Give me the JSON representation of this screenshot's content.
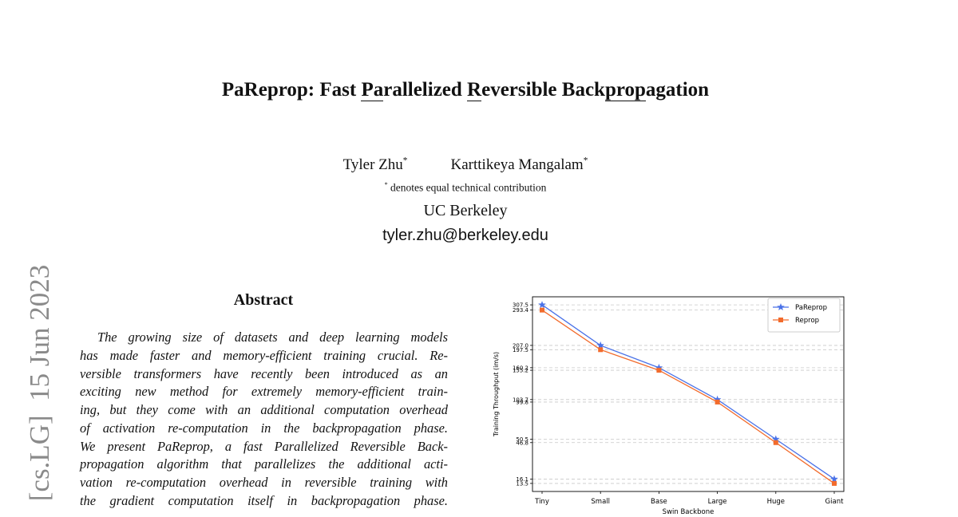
{
  "sidebar": "[cs.LG]  15 Jun 2023",
  "title_parts": [
    {
      "text": "PaReprop: Fast ",
      "underline": false
    },
    {
      "text": "Pa",
      "underline": true
    },
    {
      "text": "rallelized ",
      "underline": false
    },
    {
      "text": "R",
      "underline": true
    },
    {
      "text": "eversible Back",
      "underline": false
    },
    {
      "text": "prop",
      "underline": true
    },
    {
      "text": "agation",
      "underline": false
    }
  ],
  "authors": [
    {
      "name": "Tyler Zhu",
      "mark": "*"
    },
    {
      "name": "Karttikeya Mangalam",
      "mark": "*"
    }
  ],
  "note": {
    "mark": "*",
    "text": " denotes equal technical contribution"
  },
  "affiliation": "UC Berkeley",
  "email": "tyler.zhu@berkeley.edu",
  "abstract": {
    "heading": "Abstract",
    "lines": [
      "The growing size of datasets and deep learning models",
      "has made faster and memory-efficient training crucial. Re-",
      "versible transformers have recently been introduced as an",
      "exciting new method for extremely memory-efficient train-",
      "ing, but they come with an additional computation overhead",
      "of activation re-computation in the backpropagation phase.",
      "We present PaReprop, a fast Parallelized Reversible Back-",
      "propagation algorithm that parallelizes the additional acti-",
      "vation re-computation overhead in reversible training with",
      "the gradient computation itself in backpropagation phase."
    ]
  },
  "chart_data": {
    "type": "line",
    "xlabel": "Swin Backbone",
    "ylabel": "Training Throughput (im/s)",
    "categories": [
      "Tiny",
      "Small",
      "Base",
      "Large",
      "Huge",
      "Giant"
    ],
    "series": [
      {
        "name": "PaReprop",
        "color": "#4a72e8",
        "marker": "star",
        "values": [
          307.5,
          207.0,
          160.2,
          103.7,
          50.5,
          16.1
        ]
      },
      {
        "name": "Reprop",
        "color": "#f26b2c",
        "marker": "square",
        "values": [
          293.4,
          197.5,
          155.2,
          99.8,
          46.8,
          13.5
        ]
      }
    ],
    "yscale": "sqrt",
    "ylim": [
      9.3,
      329.8
    ],
    "yticks": [
      13.5,
      16.1,
      46.8,
      50.5,
      99.8,
      103.7,
      155.2,
      160.2,
      197.5,
      {
        "value": 207,
        "label": "207.0"
      },
      293.4,
      307.5
    ],
    "grid": true,
    "legend": "upper right"
  }
}
